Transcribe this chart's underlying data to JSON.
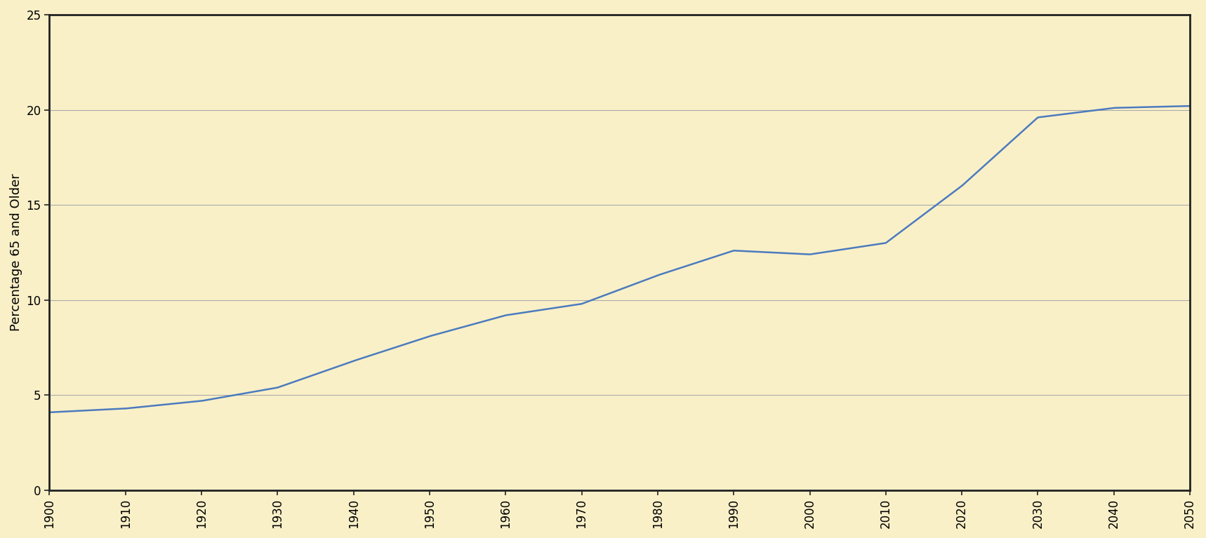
{
  "years": [
    1900,
    1910,
    1920,
    1930,
    1940,
    1950,
    1960,
    1970,
    1980,
    1990,
    2000,
    2010,
    2020,
    2030,
    2040,
    2050
  ],
  "values": [
    4.1,
    4.3,
    4.7,
    5.4,
    6.8,
    8.1,
    9.2,
    9.8,
    11.3,
    12.6,
    12.4,
    13.0,
    16.0,
    19.6,
    20.1,
    20.2
  ],
  "line_color": "#4B7BBE",
  "line_width": 1.8,
  "background_color": "#FAF0C8",
  "grid_color": "#AAAAAA",
  "ylabel": "Percentage 65 and Older",
  "ylim": [
    0,
    25
  ],
  "yticks": [
    0,
    5,
    10,
    15,
    20,
    25
  ],
  "xlim": [
    1900,
    2050
  ],
  "xticks": [
    1900,
    1910,
    1920,
    1930,
    1940,
    1950,
    1960,
    1970,
    1980,
    1990,
    2000,
    2010,
    2020,
    2030,
    2040,
    2050
  ],
  "ylabel_fontsize": 13,
  "tick_fontsize": 12,
  "spine_color": "#222222",
  "spine_linewidth": 2.0,
  "figsize": [
    17.18,
    7.67
  ],
  "dpi": 100
}
